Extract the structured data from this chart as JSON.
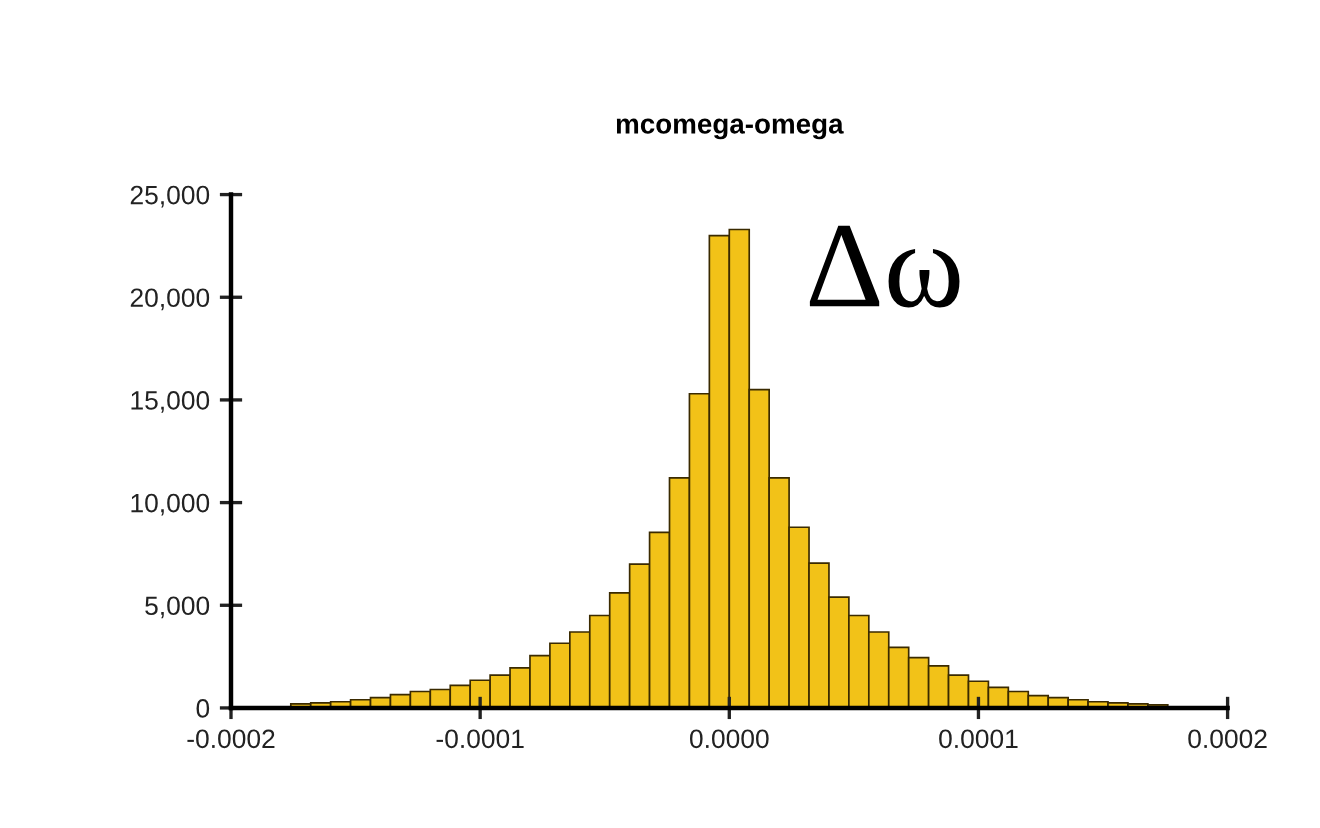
{
  "chart_data": {
    "type": "histogram",
    "title": "mcomega-omega",
    "bins": [
      -0.0002,
      -0.000192,
      -0.000184,
      -0.000176,
      -0.000168,
      -0.00016,
      -0.000152,
      -0.000144,
      -0.000136,
      -0.000128,
      -0.00012,
      -0.000112,
      -0.000104,
      -9.6e-05,
      -8.8e-05,
      -8e-05,
      -7.2e-05,
      -6.4e-05,
      -5.6e-05,
      -4.8e-05,
      -4e-05,
      -3.2e-05,
      -2.4e-05,
      -1.6e-05,
      -8e-06,
      0,
      8e-06,
      1.6e-05,
      2.4e-05,
      3.2e-05,
      4e-05,
      4.8e-05,
      5.6e-05,
      6.4e-05,
      7.2e-05,
      8e-05,
      8.8e-05,
      9.6e-05,
      0.000104,
      0.000112,
      0.00012,
      0.000128,
      0.000136,
      0.000144,
      0.000152,
      0.00016,
      0.000168,
      0.000176,
      0.000184,
      0.000192,
      0.0002
    ],
    "values": [
      null,
      null,
      null,
      200,
      250,
      300,
      400,
      500,
      650,
      800,
      900,
      1100,
      1350,
      1600,
      1950,
      2550,
      3150,
      3700,
      4500,
      5600,
      7000,
      8550,
      11200,
      15300,
      23000,
      23300,
      15500,
      11200,
      8800,
      7050,
      5400,
      4500,
      3700,
      2950,
      2450,
      2050,
      1600,
      1300,
      1000,
      800,
      600,
      500,
      400,
      300,
      250,
      200,
      150,
      null,
      null,
      null
    ],
    "color": "#f2c218",
    "xlim": [
      -0.0002,
      0.0002
    ],
    "xticks": [
      {
        "value": -0.0002,
        "label": "-0.0002"
      },
      {
        "value": -0.0001,
        "label": "-0.0001"
      },
      {
        "value": 0,
        "label": "0.0000"
      },
      {
        "value": 0.0001,
        "label": "0.0001"
      },
      {
        "value": 0.0002,
        "label": "0.0002"
      }
    ],
    "ylim": [
      0,
      25000
    ],
    "yticks": [
      {
        "value": 0,
        "label": "0"
      },
      {
        "value": 5000,
        "label": "5,000"
      },
      {
        "value": 10000,
        "label": "10,000"
      },
      {
        "value": 15000,
        "label": "15,000"
      },
      {
        "value": 20000,
        "label": "20,000"
      },
      {
        "value": 25000,
        "label": "25,000"
      }
    ],
    "grid": false,
    "annotations": [
      "Δω"
    ]
  }
}
